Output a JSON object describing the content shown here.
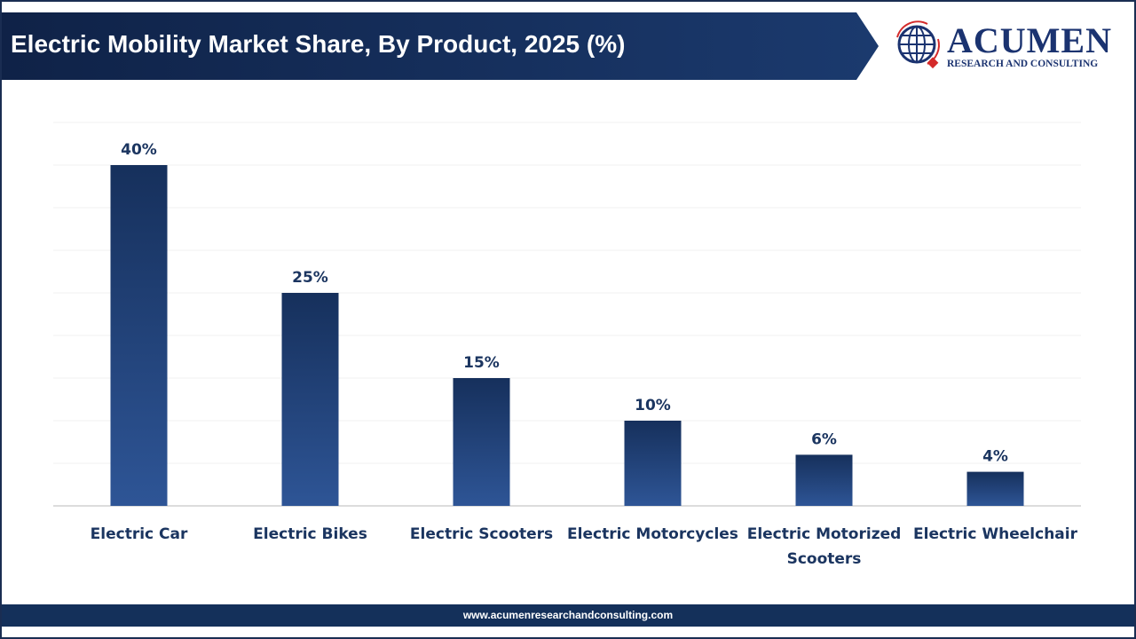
{
  "header": {
    "title": "Electric Mobility Market Share, By Product, 2025 (%)"
  },
  "logo": {
    "name": "ACUMEN",
    "tagline": "RESEARCH AND CONSULTING"
  },
  "footer": {
    "url": "www.acumenresearchandconsulting.com"
  },
  "colors": {
    "bar_top": "#16305c",
    "bar_bottom": "#2e5596",
    "banner": "#14305a",
    "accent_red": "#d42a2a"
  },
  "chart_data": {
    "type": "bar",
    "title": "Electric Mobility Market Share, By Product, 2025 (%)",
    "categories": [
      [
        "Electric Car"
      ],
      [
        "Electric Bikes"
      ],
      [
        "Electric Scooters"
      ],
      [
        "Electric Motorcycles"
      ],
      [
        "Electric Motorized",
        "Scooters"
      ],
      [
        "Electric Wheelchair"
      ]
    ],
    "values": [
      40,
      25,
      15,
      10,
      6,
      4
    ],
    "data_labels": [
      "40%",
      "25%",
      "15%",
      "10%",
      "6%",
      "4%"
    ],
    "ylim": [
      0,
      45
    ],
    "grid": true,
    "y_axis_visible": false,
    "xlabel": "",
    "ylabel": ""
  }
}
